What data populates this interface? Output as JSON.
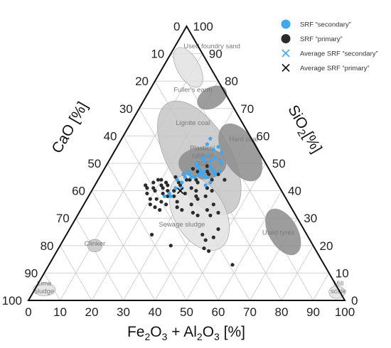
{
  "chart_data": {
    "type": "ternary-scatter",
    "axes": {
      "bottom": {
        "label_main": "Fe",
        "label_sub1": "2",
        "label_mid": "O",
        "label_sub2": "3",
        "label_tail": " + Al",
        "label_sub3": "2",
        "label_mid2": "O",
        "label_sub4": "3",
        "label_unit": " [%]"
      },
      "left": {
        "label_main": "CaO [%]"
      },
      "right": {
        "label_main": "SiO",
        "label_sub": "2",
        "label_unit": "[%]"
      },
      "ticks": [
        "0",
        "10",
        "20",
        "30",
        "40",
        "50",
        "60",
        "70",
        "80",
        "90",
        "100"
      ]
    },
    "legend": [
      {
        "label": "SRF “secondary”",
        "marker": "dot",
        "color": "#3ea8f0"
      },
      {
        "label": "SRF “primary”",
        "marker": "dot",
        "color": "#2b2b2b"
      },
      {
        "label": "Average SRF “secondary”",
        "marker": "cross",
        "color": "#3ea8f0"
      },
      {
        "label": "Average SRF “primary”",
        "marker": "cross",
        "color": "#111111"
      }
    ],
    "regions": [
      {
        "label": "Used foundry sand",
        "fill": "#e2e2e2",
        "fe": 8,
        "si": 85,
        "r1": 7,
        "r2": 3.5,
        "angle": 60,
        "label_fe": 12,
        "label_si": 92
      },
      {
        "label": "Fuller's earth",
        "fill": "#8c8c8c",
        "fe": 21,
        "si": 74,
        "r1": 5,
        "r2": 3.2,
        "angle": -30,
        "label_fe": 14,
        "label_si": 76
      },
      {
        "label": "Lignite coal",
        "fill": "#c6c6c6",
        "fe": 28,
        "si": 52,
        "r1": 20,
        "r2": 10,
        "angle": 60,
        "label_fe": 20,
        "label_si": 64
      },
      {
        "label": "Hard coal",
        "fill": "#8c8c8c",
        "fe": 40,
        "si": 54,
        "r1": 10,
        "r2": 5.5,
        "angle": 60,
        "label_fe": 39,
        "label_si": 58
      },
      {
        "label": "Plastics/ rubber/ RDF",
        "fill": "#8c8c8c",
        "fe": 30,
        "si": 50,
        "r1": 7.5,
        "r2": 5,
        "angle": 0,
        "label_fe": 29,
        "label_si": 52
      },
      {
        "label": "Sewage sludge",
        "fill": "#e2e2e2",
        "fe": 38,
        "si": 32,
        "r1": 13,
        "r2": 8,
        "angle": 60,
        "label_fe": 35,
        "label_si": 27
      },
      {
        "label": "Used tyres",
        "fill": "#8c8c8c",
        "fe": 68,
        "si": 25,
        "r1": 8,
        "r2": 4.5,
        "angle": 60,
        "label_fe": 67,
        "label_si": 24
      },
      {
        "label": "Clinker",
        "fill": "#c6c6c6",
        "fe": 11,
        "si": 20,
        "r1": 2.3,
        "r2": 2,
        "angle": 0,
        "label_fe": 11,
        "label_si": 20
      },
      {
        "label": "Lime sludge",
        "fill": "#e2e2e2",
        "fe": 3,
        "si": 4,
        "r1": 3.5,
        "r2": 2,
        "angle": 0,
        "label_fe": 3,
        "label_si": 4
      },
      {
        "label": "Mill scale",
        "fill": "#e2e2e2",
        "fe": 96,
        "si": 3,
        "r1": 2.5,
        "r2": 2,
        "angle": 0,
        "label_fe": 96,
        "label_si": 4
      }
    ],
    "primary_points": [
      [
        16,
        42
      ],
      [
        17,
        41
      ],
      [
        18,
        43
      ],
      [
        19,
        41
      ],
      [
        20,
        40
      ],
      [
        21,
        42
      ],
      [
        22,
        41
      ],
      [
        23,
        39
      ],
      [
        24,
        40
      ],
      [
        25,
        38
      ],
      [
        18,
        39
      ],
      [
        20,
        37
      ],
      [
        22,
        37
      ],
      [
        24,
        36
      ],
      [
        26,
        40
      ],
      [
        27,
        38
      ],
      [
        28,
        41
      ],
      [
        29,
        36
      ],
      [
        30,
        39
      ],
      [
        31,
        41
      ],
      [
        21,
        35
      ],
      [
        23,
        34
      ],
      [
        25,
        33
      ],
      [
        26,
        35
      ],
      [
        32,
        43
      ],
      [
        33,
        40
      ],
      [
        34,
        38
      ],
      [
        35,
        37
      ],
      [
        36,
        41
      ],
      [
        38,
        40
      ],
      [
        24,
        45
      ],
      [
        26,
        46
      ],
      [
        28,
        48
      ],
      [
        30,
        47
      ],
      [
        32,
        49
      ],
      [
        34,
        46
      ],
      [
        36,
        44
      ],
      [
        30,
        34
      ],
      [
        32,
        33
      ],
      [
        34,
        35
      ],
      [
        36,
        32
      ],
      [
        38,
        31
      ],
      [
        40,
        33
      ],
      [
        42,
        31
      ],
      [
        41,
        35
      ],
      [
        43,
        24
      ],
      [
        45,
        22
      ],
      [
        47,
        23
      ],
      [
        46,
        19
      ],
      [
        48,
        18
      ],
      [
        47,
        26
      ],
      [
        35,
        20
      ],
      [
        27,
        24
      ],
      [
        26,
        43
      ],
      [
        37,
        46
      ],
      [
        28,
        44
      ],
      [
        29,
        44
      ],
      [
        33,
        47
      ],
      [
        31,
        44
      ],
      [
        27,
        42
      ],
      [
        22,
        43
      ],
      [
        19,
        44
      ],
      [
        20,
        44
      ],
      [
        23,
        42
      ],
      [
        58,
        13
      ],
      [
        40,
        44
      ],
      [
        37,
        38
      ],
      [
        44,
        32
      ]
    ],
    "secondary_points": [
      [
        28,
        57
      ],
      [
        28,
        59
      ],
      [
        29,
        52
      ],
      [
        30,
        53
      ],
      [
        31,
        55
      ],
      [
        32,
        56
      ],
      [
        33,
        52
      ],
      [
        34,
        54
      ],
      [
        35,
        51
      ],
      [
        36,
        50
      ],
      [
        29,
        49
      ],
      [
        30,
        48
      ],
      [
        31,
        47
      ],
      [
        32,
        47
      ],
      [
        33,
        49
      ],
      [
        34,
        48
      ],
      [
        35,
        47
      ],
      [
        26,
        46
      ],
      [
        27,
        47
      ],
      [
        28,
        46
      ],
      [
        29,
        45
      ],
      [
        30,
        45
      ],
      [
        31,
        46
      ],
      [
        33,
        45
      ],
      [
        34,
        45
      ],
      [
        27,
        43
      ],
      [
        26,
        41
      ],
      [
        25,
        39
      ],
      [
        26,
        38
      ],
      [
        24,
        38
      ],
      [
        28,
        41
      ],
      [
        36,
        46
      ],
      [
        37,
        47
      ],
      [
        25,
        44
      ],
      [
        32,
        51
      ],
      [
        36,
        43
      ],
      [
        35,
        42
      ],
      [
        28,
        50
      ],
      [
        30,
        51
      ],
      [
        27,
        45
      ]
    ],
    "averages": [
      {
        "series": "secondary",
        "fe": 32,
        "si": 46
      },
      {
        "series": "primary",
        "fe": 28,
        "si": 40
      }
    ]
  }
}
